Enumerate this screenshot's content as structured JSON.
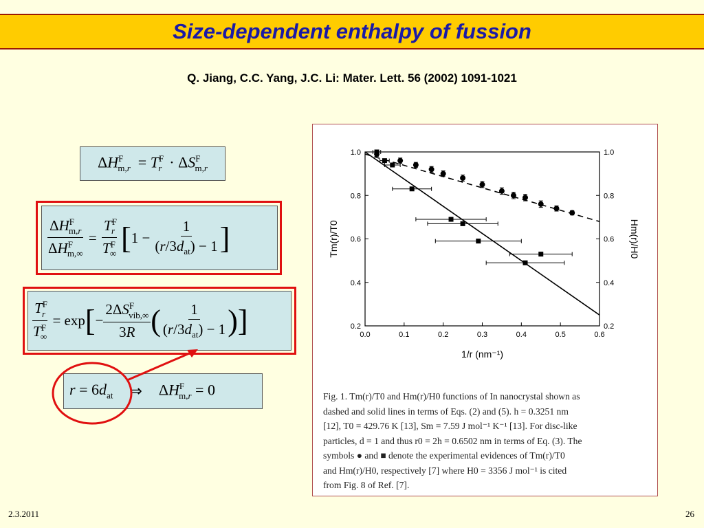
{
  "slide": {
    "title": "Size-dependent enthalpy of fussion",
    "reference": "Q. Jiang, C.C. Yang, J.C. Li: Mater. Lett. 56 (2002) 1091-1021",
    "footer_date": "2.3.2011",
    "page_number": "26"
  },
  "figure": {
    "caption_lines": [
      "Fig. 1. Tm(r)/T0 and Hm(r)/H0 functions of In nanocrystal shown as",
      "dashed and solid lines in terms of Eqs. (2) and (5). h = 0.3251 nm",
      "[12], T0 = 429.76 K [13], Sm = 7.59 J mol⁻¹ K⁻¹ [13]. For disc-like",
      "particles, d = 1 and thus r0 = 2h = 0.6502 nm in terms of Eq. (3). The",
      "symbols ● and ■ denote the experimental evidences of Tm(r)/T0",
      "and Hm(r)/H0, respectively [7] where H0 = 3356 J mol⁻¹ is cited",
      "from Fig. 8 of Ref. [7]."
    ]
  },
  "chart_data": {
    "type": "scatter",
    "xlabel": "1/r (nm⁻¹)",
    "ylabel_left": "Tm(r)/T0",
    "ylabel_right": "Hm(r)/H0",
    "xlim": [
      0.0,
      0.6
    ],
    "ylim": [
      0.2,
      1.0
    ],
    "x_ticks": [
      "0.0",
      "0.1",
      "0.2",
      "0.3",
      "0.4",
      "0.5",
      "0.6"
    ],
    "y_ticks": [
      "0.2",
      "0.4",
      "0.6",
      "0.8",
      "1.0"
    ],
    "series": [
      {
        "marker": "circle",
        "line": "dashed",
        "line_points": [
          [
            0.0,
            0.99
          ],
          [
            0.6,
            0.68
          ]
        ],
        "points": [
          [
            0.03,
            0.99
          ],
          [
            0.09,
            0.96
          ],
          [
            0.13,
            0.94
          ],
          [
            0.17,
            0.92
          ],
          [
            0.2,
            0.9
          ],
          [
            0.25,
            0.88
          ],
          [
            0.3,
            0.85
          ],
          [
            0.35,
            0.82
          ],
          [
            0.38,
            0.8
          ],
          [
            0.41,
            0.79
          ],
          [
            0.45,
            0.76
          ],
          [
            0.49,
            0.74
          ],
          [
            0.53,
            0.72
          ]
        ],
        "yerr": [
          0.01,
          0.012,
          0.012,
          0.013,
          0.013,
          0.014,
          0.014,
          0.015,
          0.015,
          0.015,
          0.015,
          0.012,
          0.01
        ]
      },
      {
        "marker": "square",
        "line": "solid",
        "line_points": [
          [
            0.0,
            1.0
          ],
          [
            0.6,
            0.25
          ]
        ],
        "points": [
          [
            0.03,
            1.0
          ],
          [
            0.05,
            0.96
          ],
          [
            0.07,
            0.94
          ],
          [
            0.12,
            0.83
          ],
          [
            0.22,
            0.69
          ],
          [
            0.25,
            0.67
          ],
          [
            0.29,
            0.59
          ],
          [
            0.45,
            0.53
          ],
          [
            0.41,
            0.49
          ]
        ],
        "xerr": [
          0.01,
          0.012,
          0.02,
          0.05,
          0.09,
          0.09,
          0.11,
          0.08,
          0.1
        ]
      }
    ]
  }
}
